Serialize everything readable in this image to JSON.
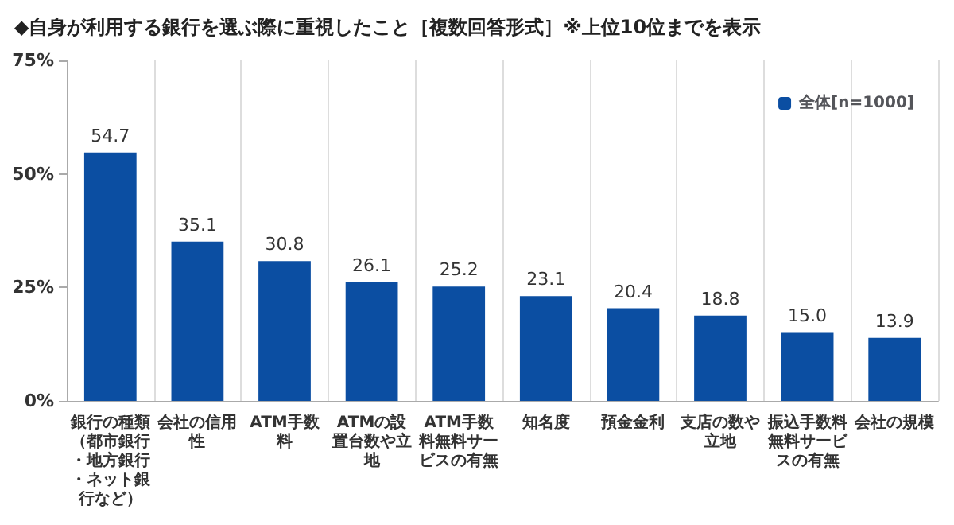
{
  "chart_data": {
    "type": "bar",
    "title": "◆自身が利用する銀行を選ぶ際に重視したこと［複数回答形式］※上位10位までを表示",
    "categories": [
      "銀行の種類（都市銀行・地方銀行・ネット銀行など）",
      "会社の信用性",
      "ATM手数料",
      "ATMの設置台数や立地",
      "ATM手数料無料サービスの有無",
      "知名度",
      "預金金利",
      "支店の数や立地",
      "振込手数料無料サービスの有無",
      "会社の規模"
    ],
    "series": [
      {
        "name": "全体[n=1000]",
        "color": "#0b4ea2",
        "values": [
          54.7,
          35.1,
          30.8,
          26.1,
          25.2,
          23.1,
          20.4,
          18.8,
          15.0,
          13.9
        ],
        "value_labels": [
          "54.7",
          "35.1",
          "30.8",
          "26.1",
          "25.2",
          "23.1",
          "20.4",
          "18.8",
          "15.0",
          "13.9"
        ]
      }
    ],
    "ylim": [
      0,
      75
    ],
    "yticks": [
      {
        "value": 0,
        "label": "0%"
      },
      {
        "value": 25,
        "label": "25%"
      },
      {
        "value": 50,
        "label": "50%"
      },
      {
        "value": 75,
        "label": "75%"
      }
    ],
    "data_labels": true,
    "grid": "x",
    "legend": "top right"
  }
}
